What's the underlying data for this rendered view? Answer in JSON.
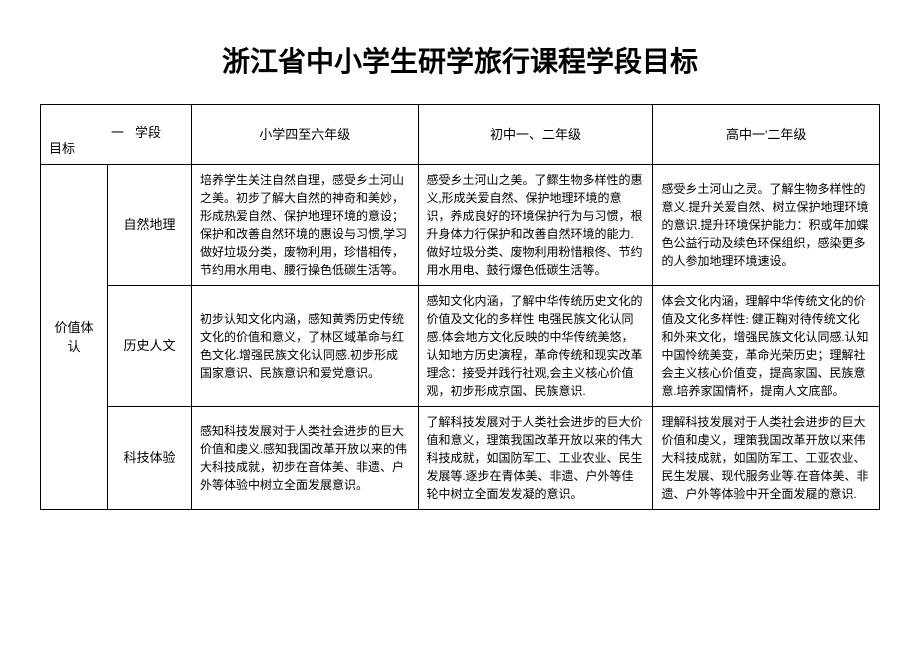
{
  "title": "浙江省中小学生研学旅行课程学段目标",
  "header": {
    "diag_left": "目标",
    "diag_mid": "一",
    "diag_right": "学段",
    "cols": [
      "小学四至六年级",
      "初中一、二年级",
      "高中一'二年级"
    ]
  },
  "group_label": "价值体认",
  "rows": [
    {
      "sub": "自然地理",
      "cells": [
        "培养学生关注自然自理，感受乡土河山之美。初步了解大自然的神奇和美妙，形成热爱自然、保护地理环境的意设；保护和改善自然环境的惠设与习惯,学习做好垃圾分类，废物利用，珍惜相传，节约用水用电、腰行操色低碳生活等。",
        "感受乡土河山之美。了鳏生物多样性的惠义,形成关爱自然、保护地理环境的意识，养成良好的环境保护行为与习惯，根升身体力行保护和改善自然环境的能力.做好垃圾分类、废物利用粉惜粮佟、节约用水用电、鼓行爆色低碳生活等。",
        "感受乡土河山之灵。了解生物多样性的意义.提升关爱自然、树立保护地理环境的意识.提升环境保护能力：积或年加蝶色公益行动及续色环保组织，感染更多的人参加地理环境速设。"
      ]
    },
    {
      "sub": "历史人文",
      "cells": [
        "初步认知文化内涵，感知黄秀历史传统文化的价值和意义，了林区域革命与红色文化.增强民族文化认同感.初步形成国家意识、民族意识和爱党意识。",
        "感知文化内涵，了解中华传统历史文化的价值及文化的多样性 电强民族文化认同感.体会地方文化反映的中华传统美悠，认知地方历史演程，革命传统和现实改革理念：接受并践行社观,会主义核心价值观，初步形成京国、民族意识.",
        "体会文化内涵，理解中华传统文化的价值及文化多样性: 健正鞠对待传统文化和外来文化，增强民族文化认同感.认知中国怜统美变，革命光荣历史；理解社会主义核心价值变，提高家国、民族意意.培养家国情杯，提南人文底部。"
      ]
    },
    {
      "sub": "科技体验",
      "cells": [
        "感知科技发展对于人类社会进步的巨大价值和虔义.感知我国改革开放以来的伟大科技成就，初步在音体美、非遗、户外等体验中树立全面发展意识。",
        "了解科技发展对于人类社会进步的巨大价值和意义，理策我国改革开放以来的伟大科技成就，如国防军工、工业农业、民生发展等.逐步在青体美、非遗、户外等佳轮中树立全面发发凝的意识。",
        "理解科技发展对于人类社会进步的巨大价值和虔义，理策我国改革开放以来伟大科技成就，如国防军工、工亚农业、民生发展、现代服务业等.在音体美、非遗、户外等体验中开全面发屣的意识."
      ]
    }
  ]
}
